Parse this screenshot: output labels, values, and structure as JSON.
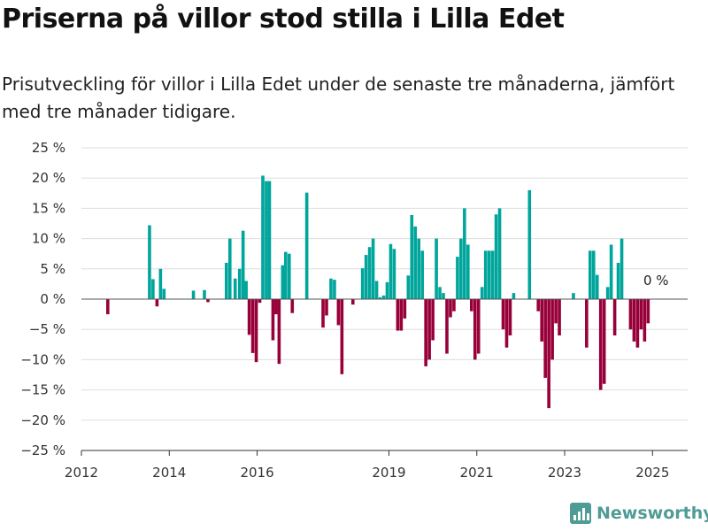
{
  "title": "Priserna på villor stod stilla i Lilla Edet",
  "subtitle": "Prisutveckling för villor i Lilla Edet under de senaste tre månaderna, jämfört med tre månader tidigare.",
  "brand": {
    "name": "Newsworthy",
    "icon": "bar-chart-logo-icon",
    "color": "#4f9b95"
  },
  "chart_data": {
    "type": "bar",
    "x_unit": "year",
    "x_ticks": [
      2012,
      2014,
      2016,
      2019,
      2021,
      2023,
      2025
    ],
    "x_tick_labels": [
      "2012",
      "2014",
      "2016",
      "2019",
      "2021",
      "2023",
      "2025"
    ],
    "xlim": [
      2012.0,
      2025.8
    ],
    "ylim": [
      -25,
      25
    ],
    "y_ticks": [
      -25,
      -20,
      -15,
      -10,
      -5,
      0,
      5,
      10,
      15,
      20,
      25
    ],
    "y_tick_labels": [
      "−25 %",
      "−20 %",
      "−15 %",
      "−10 %",
      "−5 %",
      "0 %",
      "5 %",
      "10 %",
      "15 %",
      "20 %",
      "25 %"
    ],
    "grid": true,
    "colors": {
      "positive": "#00a59b",
      "negative": "#98003a"
    },
    "last_value_label": "0 %",
    "x": [
      2012.6,
      2013.55,
      2013.63,
      2013.72,
      2013.8,
      2013.88,
      2014.55,
      2014.8,
      2014.88,
      2015.3,
      2015.38,
      2015.5,
      2015.6,
      2015.68,
      2015.75,
      2015.82,
      2015.9,
      2015.98,
      2016.06,
      2016.13,
      2016.21,
      2016.28,
      2016.36,
      2016.43,
      2016.5,
      2016.58,
      2016.65,
      2016.73,
      2016.8,
      2016.88,
      2017.13,
      2017.5,
      2017.58,
      2017.68,
      2017.76,
      2017.85,
      2017.93,
      2018.18,
      2018.4,
      2018.48,
      2018.56,
      2018.64,
      2018.72,
      2018.8,
      2018.88,
      2018.96,
      2019.04,
      2019.12,
      2019.2,
      2019.28,
      2019.36,
      2019.44,
      2019.52,
      2019.6,
      2019.68,
      2019.76,
      2019.84,
      2019.92,
      2020.0,
      2020.08,
      2020.16,
      2020.24,
      2020.32,
      2020.4,
      2020.48,
      2020.56,
      2020.64,
      2020.72,
      2020.8,
      2020.88,
      2020.96,
      2021.04,
      2021.12,
      2021.2,
      2021.28,
      2021.36,
      2021.44,
      2021.52,
      2021.6,
      2021.68,
      2021.76,
      2021.84,
      2021.92,
      2022.0,
      2022.2,
      2022.4,
      2022.48,
      2022.56,
      2022.64,
      2022.72,
      2022.8,
      2022.88,
      2023.0,
      2023.2,
      2023.5,
      2023.58,
      2023.66,
      2023.74,
      2023.82,
      2023.9,
      2023.98,
      2024.06,
      2024.14,
      2024.22,
      2024.3,
      2024.5,
      2024.58,
      2024.66,
      2024.74,
      2024.82,
      2024.9,
      2024.98
    ],
    "values": [
      -2.5,
      12.2,
      3.3,
      -1.2,
      5.0,
      1.7,
      1.4,
      1.5,
      -0.5,
      6.0,
      10.0,
      3.4,
      5.0,
      11.3,
      3.0,
      -5.9,
      -8.9,
      -10.4,
      -0.6,
      20.4,
      19.5,
      19.5,
      -6.8,
      -2.5,
      -10.7,
      5.6,
      7.8,
      7.5,
      -2.3,
      0.0,
      17.6,
      -4.7,
      -2.7,
      3.4,
      3.2,
      -4.3,
      -12.4,
      -0.9,
      5.1,
      7.3,
      8.6,
      10.0,
      3.0,
      0.3,
      0.6,
      2.8,
      9.1,
      8.3,
      -5.2,
      -5.2,
      -3.2,
      3.9,
      13.9,
      12.0,
      10.0,
      8.0,
      -11.1,
      -10.0,
      -6.8,
      10.0,
      2.0,
      1.0,
      -9.0,
      -3.0,
      -2.0,
      7.0,
      10.0,
      15.0,
      9.0,
      -2.0,
      -10.0,
      -9.0,
      2.0,
      8.0,
      8.0,
      8.0,
      14.0,
      15.0,
      -5.0,
      -8.0,
      -6.0,
      1.0,
      0.0,
      0.0,
      18.0,
      -2.0,
      -7.0,
      -13.0,
      -18.0,
      -10.0,
      -4.0,
      -6.0,
      0.0,
      1.0,
      -8.0,
      8.0,
      8.0,
      4.0,
      -15.0,
      -14.0,
      2.0,
      9.0,
      -6.0,
      6.0,
      10.0,
      -5.0,
      -7.0,
      -8.0,
      -5.0,
      -7.0,
      -4.0,
      0.0
    ]
  }
}
